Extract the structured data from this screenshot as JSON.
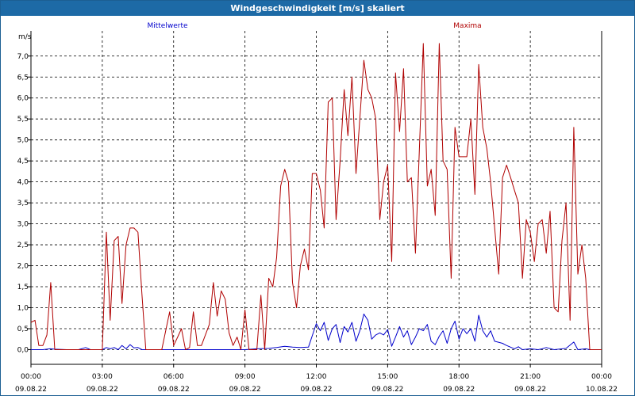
{
  "window": {
    "title": "Windgeschwindigkeit [m/s] skaliert"
  },
  "chart_data": {
    "type": "line",
    "title": "Windgeschwindigkeit [m/s] skaliert",
    "ylabel": "m/s",
    "xlabel": "",
    "ylim": [
      -0.35,
      7.6
    ],
    "xlim": [
      0,
      24
    ],
    "grid": true,
    "legend_placement": "top",
    "y_ticks": [
      {
        "value": 0.0,
        "label": "0,0"
      },
      {
        "value": 0.5,
        "label": "0,5"
      },
      {
        "value": 1.0,
        "label": "1,0"
      },
      {
        "value": 1.5,
        "label": "1,5"
      },
      {
        "value": 2.0,
        "label": "2,0"
      },
      {
        "value": 2.5,
        "label": "2,5"
      },
      {
        "value": 3.0,
        "label": "3,0"
      },
      {
        "value": 3.5,
        "label": "3,5"
      },
      {
        "value": 4.0,
        "label": "4,0"
      },
      {
        "value": 4.5,
        "label": "4,5"
      },
      {
        "value": 5.0,
        "label": "5,0"
      },
      {
        "value": 5.5,
        "label": "5,5"
      },
      {
        "value": 6.0,
        "label": "6,0"
      },
      {
        "value": 6.5,
        "label": "6,5"
      },
      {
        "value": 7.0,
        "label": "7,0"
      }
    ],
    "x_ticks": [
      {
        "value": 0,
        "time": "00:00",
        "date": "09.08.22"
      },
      {
        "value": 3,
        "time": "03:00",
        "date": "09.08.22"
      },
      {
        "value": 6,
        "time": "06:00",
        "date": "09.08.22"
      },
      {
        "value": 9,
        "time": "09:00",
        "date": "09.08.22"
      },
      {
        "value": 12,
        "time": "12:00",
        "date": "09.08.22"
      },
      {
        "value": 15,
        "time": "15:00",
        "date": "09.08.22"
      },
      {
        "value": 18,
        "time": "18:00",
        "date": "09.08.22"
      },
      {
        "value": 21,
        "time": "21:00",
        "date": "09.08.22"
      },
      {
        "value": 24,
        "time": "00:00",
        "date": "10.08.22"
      }
    ],
    "series": [
      {
        "name": "Mittelwerte",
        "color": "#0000cc",
        "points": [
          [
            0,
            0.0
          ],
          [
            0.5,
            0.0
          ],
          [
            0.8,
            0.02
          ],
          [
            1.0,
            0.01
          ],
          [
            1.5,
            0.0
          ],
          [
            2.0,
            0.0
          ],
          [
            2.3,
            0.05
          ],
          [
            2.5,
            0.0
          ],
          [
            3.0,
            0.0
          ],
          [
            3.17,
            0.05
          ],
          [
            3.33,
            0.02
          ],
          [
            3.5,
            0.05
          ],
          [
            3.67,
            0.0
          ],
          [
            3.83,
            0.1
          ],
          [
            4.0,
            0.02
          ],
          [
            4.17,
            0.12
          ],
          [
            4.33,
            0.04
          ],
          [
            4.5,
            0.05
          ],
          [
            4.67,
            0.0
          ],
          [
            5.0,
            0.0
          ],
          [
            6.0,
            0.0
          ],
          [
            7.0,
            0.0
          ],
          [
            8.0,
            0.0
          ],
          [
            9.0,
            0.0
          ],
          [
            9.5,
            0.02
          ],
          [
            10.0,
            0.03
          ],
          [
            10.33,
            0.05
          ],
          [
            10.67,
            0.08
          ],
          [
            11.0,
            0.06
          ],
          [
            11.33,
            0.05
          ],
          [
            11.67,
            0.06
          ],
          [
            12.0,
            0.62
          ],
          [
            12.17,
            0.45
          ],
          [
            12.33,
            0.65
          ],
          [
            12.5,
            0.22
          ],
          [
            12.67,
            0.5
          ],
          [
            12.83,
            0.6
          ],
          [
            13.0,
            0.17
          ],
          [
            13.17,
            0.55
          ],
          [
            13.33,
            0.42
          ],
          [
            13.5,
            0.65
          ],
          [
            13.67,
            0.2
          ],
          [
            13.83,
            0.45
          ],
          [
            14.0,
            0.85
          ],
          [
            14.17,
            0.7
          ],
          [
            14.33,
            0.25
          ],
          [
            14.5,
            0.35
          ],
          [
            14.67,
            0.4
          ],
          [
            14.83,
            0.35
          ],
          [
            15.0,
            0.48
          ],
          [
            15.17,
            0.08
          ],
          [
            15.33,
            0.3
          ],
          [
            15.5,
            0.55
          ],
          [
            15.67,
            0.3
          ],
          [
            15.83,
            0.45
          ],
          [
            16.0,
            0.12
          ],
          [
            16.17,
            0.3
          ],
          [
            16.33,
            0.5
          ],
          [
            16.5,
            0.45
          ],
          [
            16.67,
            0.6
          ],
          [
            16.83,
            0.2
          ],
          [
            17.0,
            0.12
          ],
          [
            17.17,
            0.32
          ],
          [
            17.33,
            0.45
          ],
          [
            17.5,
            0.15
          ],
          [
            17.67,
            0.5
          ],
          [
            17.83,
            0.68
          ],
          [
            18.0,
            0.25
          ],
          [
            18.17,
            0.5
          ],
          [
            18.33,
            0.38
          ],
          [
            18.5,
            0.5
          ],
          [
            18.67,
            0.2
          ],
          [
            18.83,
            0.82
          ],
          [
            19.0,
            0.45
          ],
          [
            19.17,
            0.3
          ],
          [
            19.33,
            0.45
          ],
          [
            19.5,
            0.2
          ],
          [
            19.83,
            0.15
          ],
          [
            20.0,
            0.1
          ],
          [
            20.33,
            0.02
          ],
          [
            20.5,
            0.07
          ],
          [
            20.67,
            0.0
          ],
          [
            21.0,
            0.02
          ],
          [
            21.33,
            0.0
          ],
          [
            21.5,
            0.02
          ],
          [
            21.67,
            0.05
          ],
          [
            22.0,
            0.0
          ],
          [
            22.5,
            0.03
          ],
          [
            22.83,
            0.18
          ],
          [
            23.0,
            0.0
          ],
          [
            23.33,
            0.02
          ],
          [
            23.5,
            0.0
          ],
          [
            24.0,
            0.0
          ]
        ]
      },
      {
        "name": "Maxima",
        "color": "#b00000",
        "points": [
          [
            0.0,
            0.65
          ],
          [
            0.17,
            0.7
          ],
          [
            0.33,
            0.1
          ],
          [
            0.5,
            0.1
          ],
          [
            0.67,
            0.35
          ],
          [
            0.83,
            1.6
          ],
          [
            1.0,
            0.0
          ],
          [
            2.5,
            0.0
          ],
          [
            2.83,
            0.0
          ],
          [
            3.0,
            0.0
          ],
          [
            3.17,
            2.8
          ],
          [
            3.33,
            0.7
          ],
          [
            3.5,
            2.6
          ],
          [
            3.67,
            2.7
          ],
          [
            3.83,
            1.1
          ],
          [
            4.0,
            2.5
          ],
          [
            4.17,
            2.9
          ],
          [
            4.33,
            2.9
          ],
          [
            4.5,
            2.8
          ],
          [
            4.67,
            1.3
          ],
          [
            4.83,
            0.0
          ],
          [
            5.5,
            0.0
          ],
          [
            5.83,
            0.9
          ],
          [
            6.0,
            0.1
          ],
          [
            6.17,
            0.3
          ],
          [
            6.33,
            0.5
          ],
          [
            6.5,
            0.0
          ],
          [
            6.67,
            0.05
          ],
          [
            6.83,
            0.9
          ],
          [
            7.0,
            0.1
          ],
          [
            7.17,
            0.1
          ],
          [
            7.5,
            0.6
          ],
          [
            7.67,
            1.6
          ],
          [
            7.83,
            0.8
          ],
          [
            8.0,
            1.4
          ],
          [
            8.17,
            1.2
          ],
          [
            8.33,
            0.4
          ],
          [
            8.5,
            0.1
          ],
          [
            8.67,
            0.3
          ],
          [
            8.83,
            0.0
          ],
          [
            9.0,
            0.95
          ],
          [
            9.17,
            0.0
          ],
          [
            9.5,
            0.0
          ],
          [
            9.67,
            1.3
          ],
          [
            9.83,
            0.0
          ],
          [
            10.0,
            1.7
          ],
          [
            10.17,
            1.5
          ],
          [
            10.33,
            2.2
          ],
          [
            10.5,
            3.9
          ],
          [
            10.67,
            4.3
          ],
          [
            10.83,
            4.0
          ],
          [
            11.0,
            1.6
          ],
          [
            11.17,
            1.0
          ],
          [
            11.33,
            2.0
          ],
          [
            11.5,
            2.4
          ],
          [
            11.67,
            1.9
          ],
          [
            11.83,
            4.2
          ],
          [
            12.0,
            4.2
          ],
          [
            12.17,
            3.8
          ],
          [
            12.33,
            2.9
          ],
          [
            12.5,
            5.9
          ],
          [
            12.67,
            6.0
          ],
          [
            12.83,
            3.1
          ],
          [
            13.0,
            4.5
          ],
          [
            13.17,
            6.2
          ],
          [
            13.33,
            5.1
          ],
          [
            13.5,
            6.5
          ],
          [
            13.67,
            4.2
          ],
          [
            13.83,
            5.5
          ],
          [
            14.0,
            6.9
          ],
          [
            14.17,
            6.2
          ],
          [
            14.33,
            6.0
          ],
          [
            14.5,
            5.5
          ],
          [
            14.67,
            3.1
          ],
          [
            14.83,
            4.0
          ],
          [
            15.0,
            4.4
          ],
          [
            15.17,
            2.1
          ],
          [
            15.33,
            6.6
          ],
          [
            15.5,
            5.2
          ],
          [
            15.67,
            6.7
          ],
          [
            15.83,
            4.0
          ],
          [
            16.0,
            4.1
          ],
          [
            16.17,
            2.3
          ],
          [
            16.33,
            4.7
          ],
          [
            16.5,
            7.3
          ],
          [
            16.67,
            3.9
          ],
          [
            16.83,
            4.3
          ],
          [
            17.0,
            3.2
          ],
          [
            17.17,
            7.3
          ],
          [
            17.33,
            4.5
          ],
          [
            17.5,
            4.3
          ],
          [
            17.67,
            1.7
          ],
          [
            17.83,
            5.3
          ],
          [
            18.0,
            4.6
          ],
          [
            18.17,
            4.6
          ],
          [
            18.33,
            4.6
          ],
          [
            18.5,
            5.5
          ],
          [
            18.67,
            3.7
          ],
          [
            18.83,
            6.8
          ],
          [
            19.0,
            5.3
          ],
          [
            19.17,
            4.8
          ],
          [
            19.33,
            4.0
          ],
          [
            19.5,
            2.9
          ],
          [
            19.67,
            1.8
          ],
          [
            19.83,
            4.1
          ],
          [
            20.0,
            4.4
          ],
          [
            20.17,
            4.1
          ],
          [
            20.33,
            3.8
          ],
          [
            20.5,
            3.5
          ],
          [
            20.67,
            1.7
          ],
          [
            20.83,
            3.1
          ],
          [
            21.0,
            2.8
          ],
          [
            21.17,
            2.1
          ],
          [
            21.33,
            3.0
          ],
          [
            21.5,
            3.1
          ],
          [
            21.67,
            2.3
          ],
          [
            21.83,
            3.3
          ],
          [
            22.0,
            1.0
          ],
          [
            22.17,
            0.9
          ],
          [
            22.33,
            2.6
          ],
          [
            22.5,
            3.5
          ],
          [
            22.67,
            0.7
          ],
          [
            22.83,
            5.3
          ],
          [
            23.0,
            1.8
          ],
          [
            23.17,
            2.5
          ],
          [
            23.33,
            1.7
          ],
          [
            23.5,
            0.0
          ],
          [
            24.0,
            0.0
          ]
        ]
      }
    ]
  }
}
